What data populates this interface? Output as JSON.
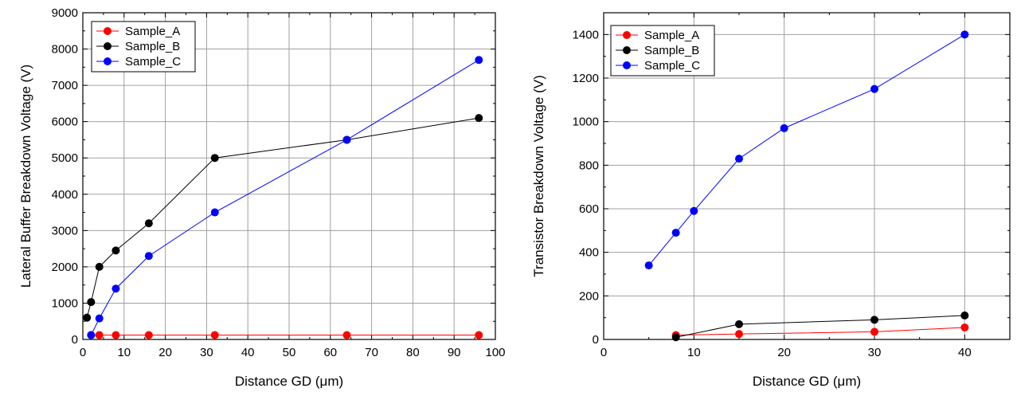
{
  "chart_data": [
    {
      "type": "line",
      "title": "",
      "xlabel": "Distance GD (μm)",
      "ylabel": "Lateral Buffer Breakdown Voltage (V)",
      "xlim": [
        0,
        100
      ],
      "ylim": [
        0,
        9000
      ],
      "x_ticks": [
        "0",
        "10",
        "20",
        "30",
        "40",
        "50",
        "60",
        "70",
        "80",
        "90",
        "100"
      ],
      "y_ticks": [
        "0",
        "1000",
        "2000",
        "3000",
        "4000",
        "5000",
        "6000",
        "7000",
        "8000",
        "9000"
      ],
      "grid": true,
      "legend_position": "top-left",
      "series": [
        {
          "name": "Sample_A",
          "color": "#ff0000",
          "x": [
            2,
            4,
            8,
            16,
            32,
            64,
            96
          ],
          "y": [
            120,
            120,
            120,
            120,
            120,
            120,
            120
          ]
        },
        {
          "name": "Sample_B",
          "color": "#000000",
          "x": [
            1,
            2,
            4,
            8,
            16,
            32,
            64,
            96
          ],
          "y": [
            600,
            1030,
            2000,
            2450,
            3200,
            5000,
            5500,
            6100
          ]
        },
        {
          "name": "Sample_C",
          "color": "#0000ff",
          "x": [
            2,
            4,
            8,
            16,
            32,
            64,
            96
          ],
          "y": [
            120,
            580,
            1400,
            2300,
            3500,
            5500,
            7700
          ]
        }
      ]
    },
    {
      "type": "line",
      "title": "",
      "xlabel": "Distance GD (μm)",
      "ylabel": "Transistor Breakdown Voltage (V)",
      "xlim": [
        0,
        45
      ],
      "ylim": [
        0,
        1500
      ],
      "x_ticks": [
        "0",
        "10",
        "20",
        "30",
        "40"
      ],
      "y_ticks": [
        "0",
        "200",
        "400",
        "600",
        "800",
        "1000",
        "1200",
        "1400"
      ],
      "grid": true,
      "legend_position": "top-left",
      "series": [
        {
          "name": "Sample_A",
          "color": "#ff0000",
          "x": [
            8,
            15,
            30,
            40
          ],
          "y": [
            20,
            25,
            35,
            55
          ]
        },
        {
          "name": "Sample_B",
          "color": "#000000",
          "x": [
            8,
            15,
            30,
            40
          ],
          "y": [
            10,
            70,
            90,
            110
          ]
        },
        {
          "name": "Sample_C",
          "color": "#0000ff",
          "x": [
            5,
            8,
            10,
            15,
            20,
            30,
            40
          ],
          "y": [
            340,
            490,
            590,
            830,
            970,
            1150,
            1400
          ]
        }
      ]
    }
  ]
}
